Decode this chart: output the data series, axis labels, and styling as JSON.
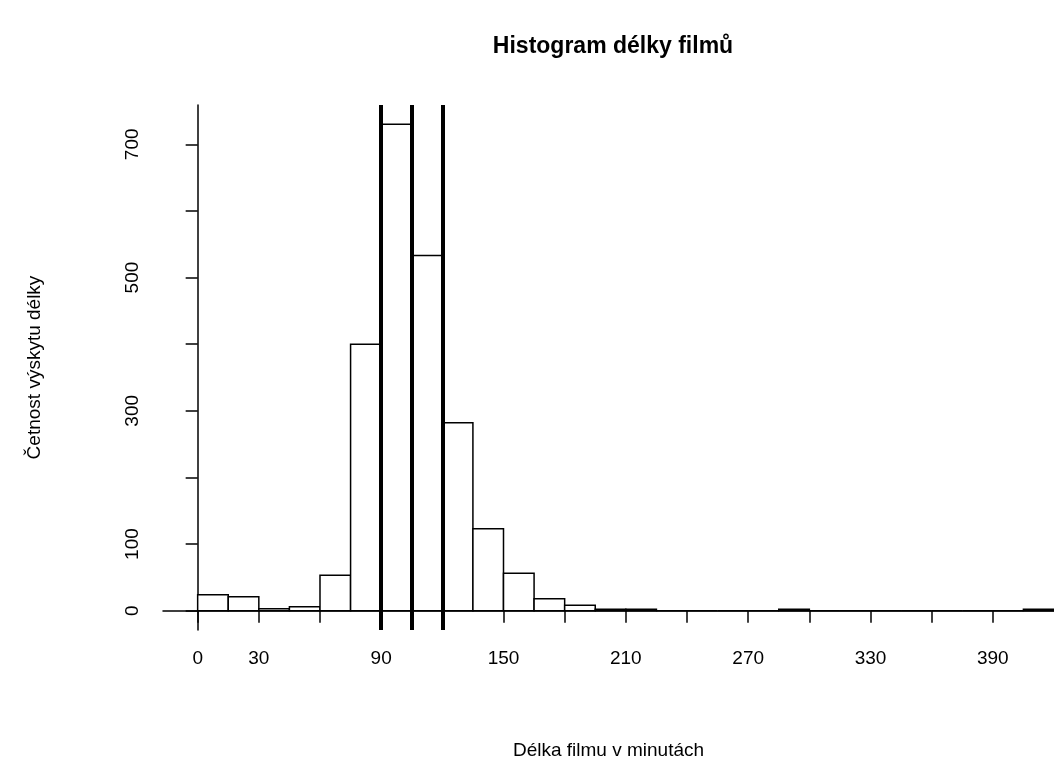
{
  "chart_data": {
    "type": "histogram",
    "title": "Histogram délky filmů",
    "xlabel": "Délka filmu v minutách",
    "ylabel": "Četnost výskytu délky",
    "bins": [
      0,
      15,
      30,
      45,
      60,
      75,
      90,
      105,
      120,
      135,
      150,
      165,
      180,
      195,
      210,
      225,
      240,
      255,
      270,
      285,
      300,
      315,
      330,
      345,
      360,
      375,
      390,
      405,
      420
    ],
    "values": [
      24,
      21,
      3,
      6,
      53,
      400,
      730,
      533,
      282,
      123,
      56,
      18,
      8,
      2,
      2,
      0,
      0,
      0,
      0,
      2,
      0,
      0,
      0,
      0,
      0,
      0,
      0,
      2
    ],
    "color": "#ffffff",
    "xlim": [
      -17,
      420
    ],
    "xticks": [
      0,
      30,
      {
        "value": 60,
        "label": null
      },
      90,
      {
        "value": 120,
        "label": null
      },
      150,
      {
        "value": 180,
        "label": null
      },
      210,
      {
        "value": 240,
        "label": null
      },
      270,
      {
        "value": 300,
        "label": null
      },
      330,
      {
        "value": 360,
        "label": null
      },
      390
    ],
    "ylim": [
      -29,
      759
    ],
    "yticks": [
      0,
      100,
      {
        "value": 200,
        "label": null
      },
      300,
      {
        "value": 400,
        "label": null
      },
      500,
      {
        "value": 600,
        "label": null
      },
      700
    ],
    "ref_lines": [
      {
        "axis": "x",
        "value": 90,
        "color": "#000000"
      },
      {
        "axis": "x",
        "value": 105,
        "color": "#000000"
      },
      {
        "axis": "x",
        "value": 120,
        "color": "#000000"
      }
    ],
    "grid": false
  }
}
